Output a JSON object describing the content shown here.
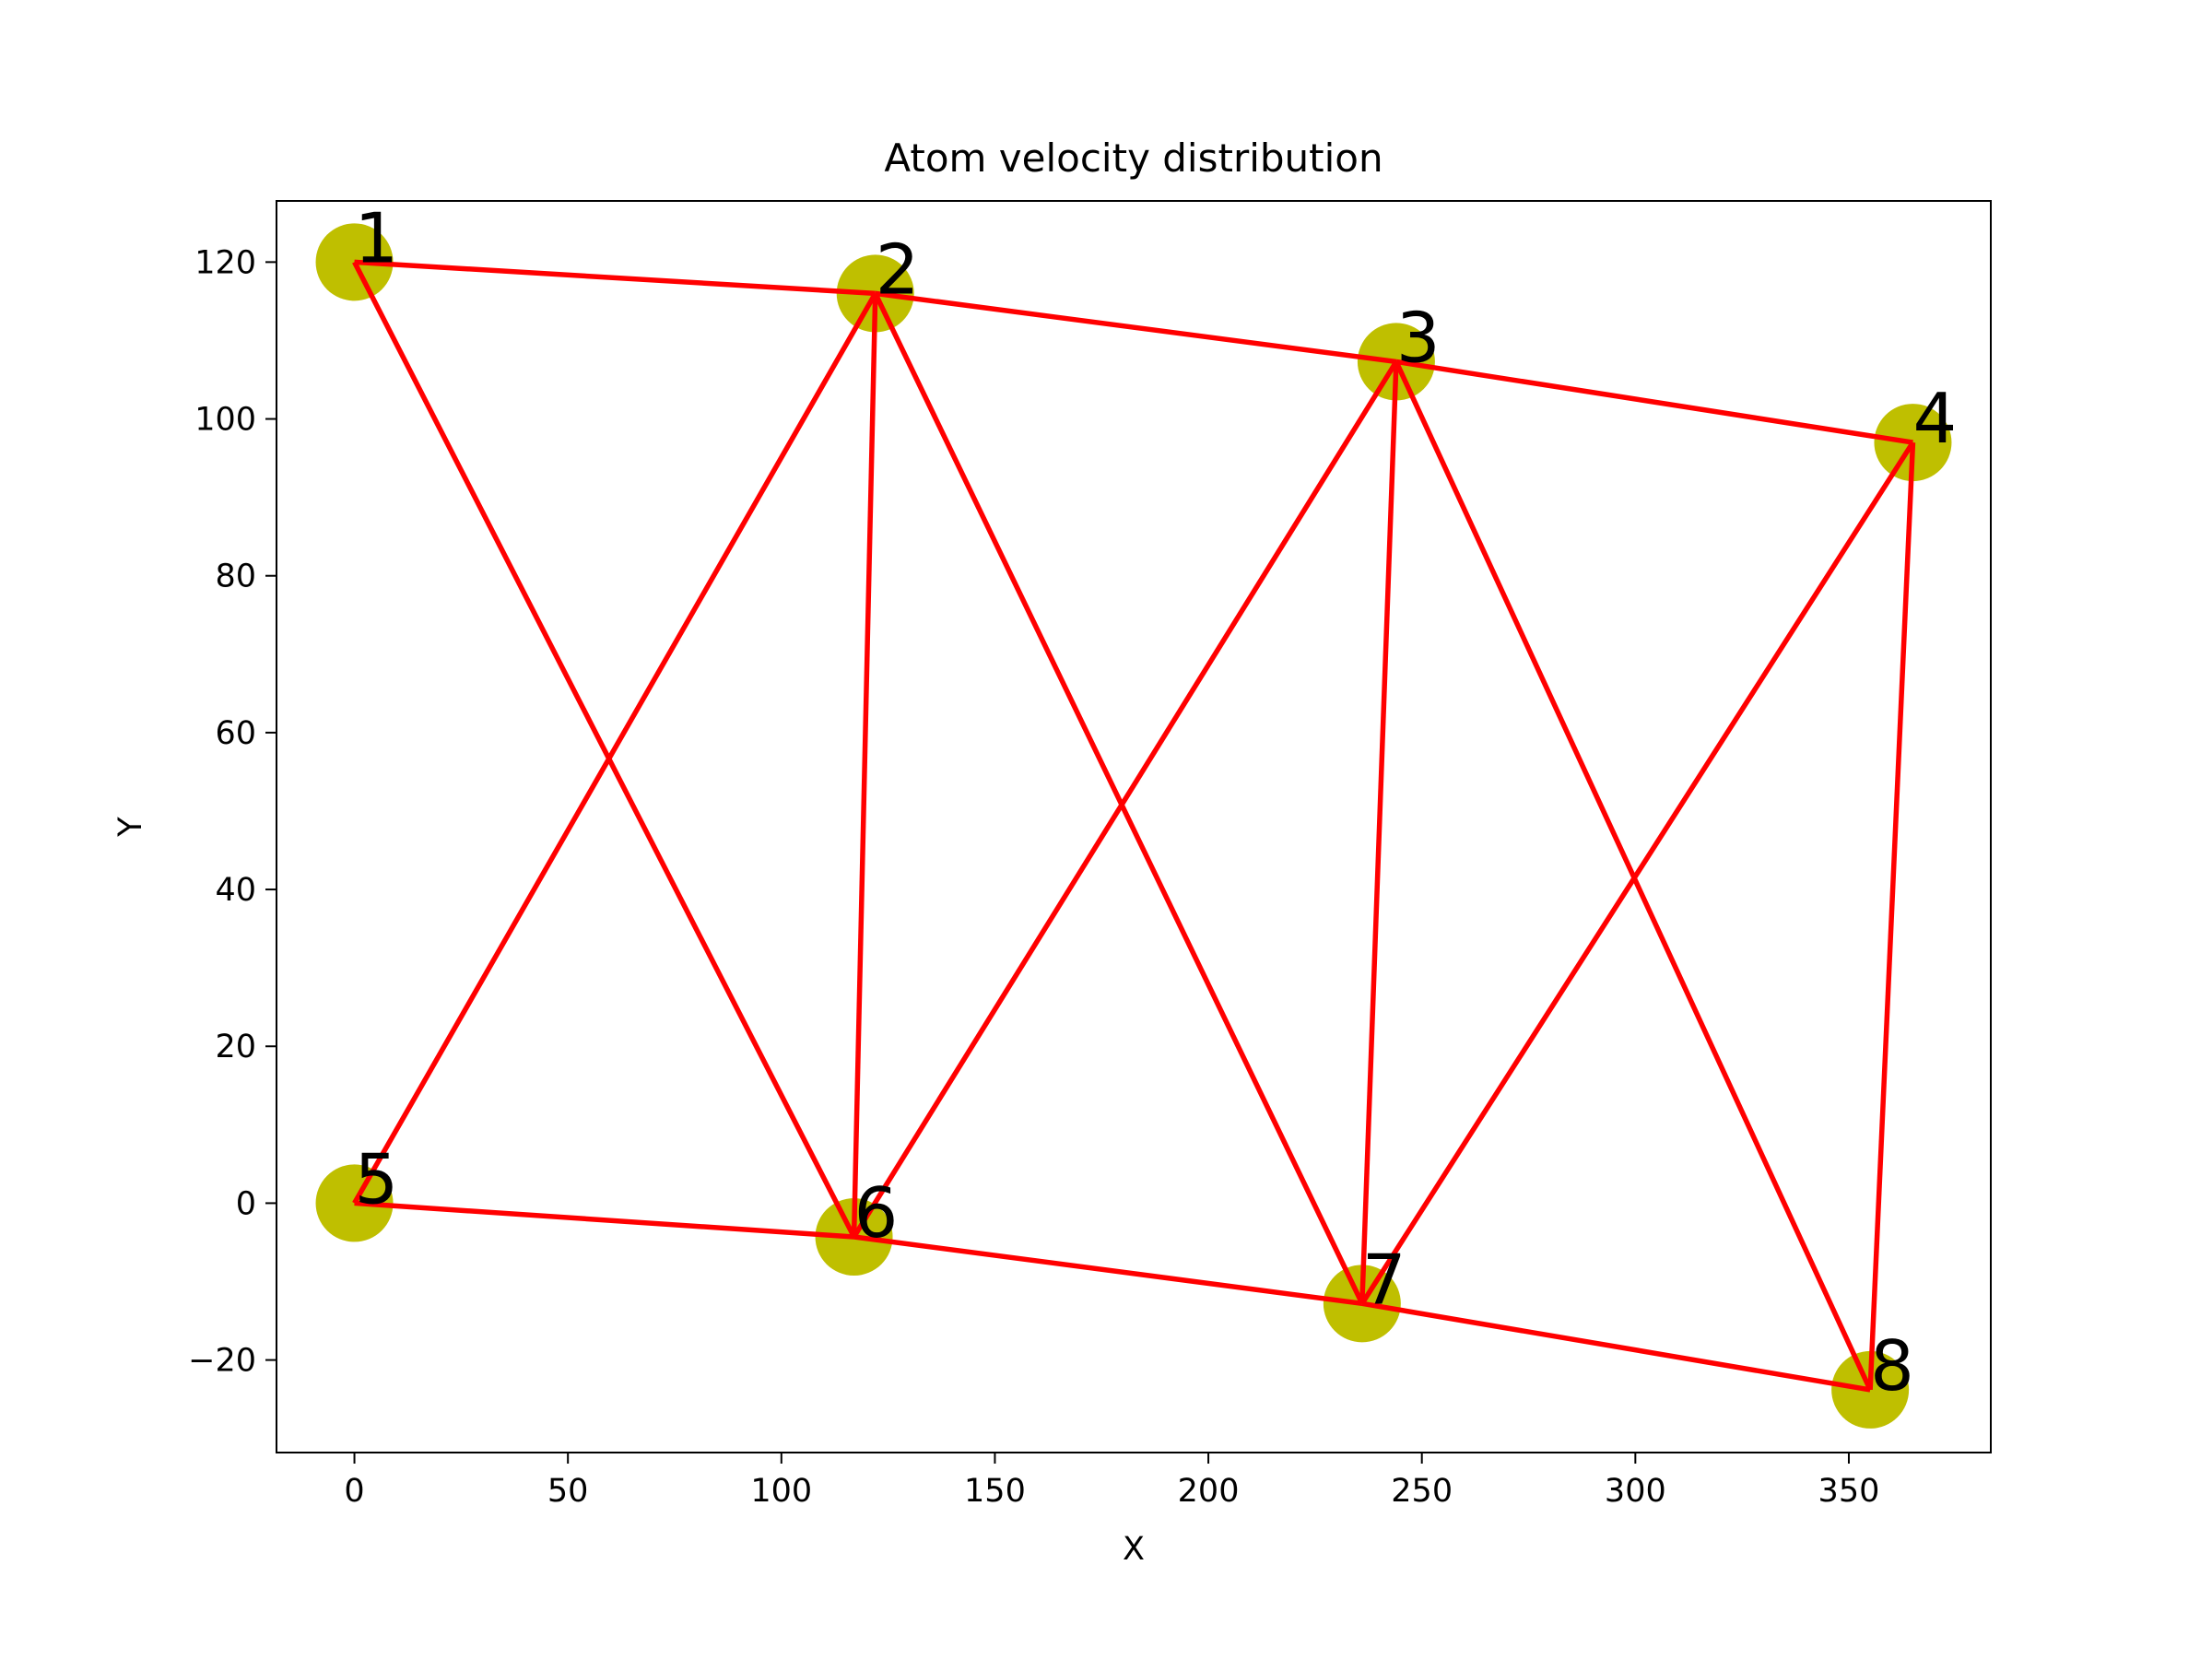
{
  "chart_data": {
    "type": "scatter",
    "title": "Atom velocity distribution",
    "xlabel": "X",
    "ylabel": "Y",
    "xlim": [
      -18.25,
      383.25
    ],
    "ylim": [
      -31.8,
      127.8
    ],
    "xticks": [
      0,
      50,
      100,
      150,
      200,
      250,
      300,
      350
    ],
    "xtick_labels": [
      "0",
      "50",
      "100",
      "150",
      "200",
      "250",
      "300",
      "350"
    ],
    "yticks": [
      -20,
      0,
      20,
      40,
      60,
      80,
      100,
      120
    ],
    "ytick_labels": [
      "−20",
      "0",
      "20",
      "40",
      "60",
      "80",
      "100",
      "120"
    ],
    "grid": false,
    "legend": false,
    "points": [
      {
        "label": "1",
        "x": 0,
        "y": 120
      },
      {
        "label": "2",
        "x": 122,
        "y": 116
      },
      {
        "label": "3",
        "x": 244,
        "y": 107.3
      },
      {
        "label": "4",
        "x": 365,
        "y": 97
      },
      {
        "label": "5",
        "x": 0,
        "y": 0
      },
      {
        "label": "6",
        "x": 117,
        "y": -4.3
      },
      {
        "label": "7",
        "x": 236,
        "y": -12.8
      },
      {
        "label": "8",
        "x": 355,
        "y": -23.8
      }
    ],
    "edges": [
      [
        "1",
        "2"
      ],
      [
        "2",
        "3"
      ],
      [
        "3",
        "4"
      ],
      [
        "5",
        "6"
      ],
      [
        "6",
        "7"
      ],
      [
        "7",
        "8"
      ],
      [
        "1",
        "6"
      ],
      [
        "5",
        "2"
      ],
      [
        "2",
        "6"
      ],
      [
        "2",
        "7"
      ],
      [
        "6",
        "3"
      ],
      [
        "3",
        "7"
      ],
      [
        "3",
        "8"
      ],
      [
        "7",
        "4"
      ],
      [
        "4",
        "8"
      ]
    ],
    "marker_color": "#bfbf00",
    "edge_color": "#ff0000"
  }
}
